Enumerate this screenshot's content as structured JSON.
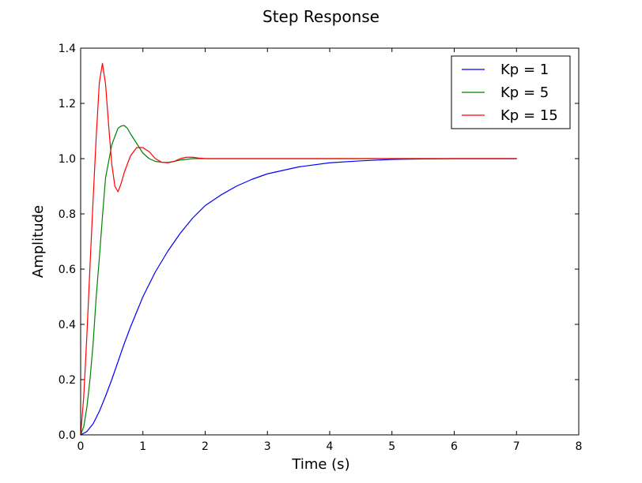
{
  "chart_data": {
    "type": "line",
    "title": "Step Response",
    "xlabel": "Time (s)",
    "ylabel": "Amplitude",
    "xlim": [
      0,
      8
    ],
    "ylim": [
      0,
      1.4
    ],
    "xticks": [
      "0",
      "1",
      "2",
      "3",
      "4",
      "5",
      "6",
      "7",
      "8"
    ],
    "yticks": [
      "0.0",
      "0.2",
      "0.4",
      "0.6",
      "0.8",
      "1.0",
      "1.2",
      "1.4"
    ],
    "grid": false,
    "legend_position": "top-right",
    "series": [
      {
        "name": "Kp = 1",
        "color": "#0000ff",
        "points": [
          [
            0,
            0
          ],
          [
            0.1,
            0.012
          ],
          [
            0.2,
            0.04
          ],
          [
            0.3,
            0.085
          ],
          [
            0.4,
            0.14
          ],
          [
            0.5,
            0.2
          ],
          [
            0.6,
            0.265
          ],
          [
            0.7,
            0.33
          ],
          [
            0.8,
            0.39
          ],
          [
            0.9,
            0.445
          ],
          [
            1.0,
            0.5
          ],
          [
            1.2,
            0.59
          ],
          [
            1.4,
            0.665
          ],
          [
            1.6,
            0.73
          ],
          [
            1.8,
            0.785
          ],
          [
            2.0,
            0.83
          ],
          [
            2.25,
            0.868
          ],
          [
            2.5,
            0.9
          ],
          [
            2.75,
            0.925
          ],
          [
            3.0,
            0.945
          ],
          [
            3.5,
            0.97
          ],
          [
            4.0,
            0.985
          ],
          [
            4.5,
            0.992
          ],
          [
            5.0,
            0.997
          ],
          [
            5.5,
            0.999
          ],
          [
            6.0,
            1.0
          ],
          [
            6.5,
            1.0
          ],
          [
            7.0,
            1.0
          ]
        ]
      },
      {
        "name": "Kp = 5",
        "color": "#008000",
        "points": [
          [
            0,
            0
          ],
          [
            0.05,
            0.03
          ],
          [
            0.1,
            0.1
          ],
          [
            0.15,
            0.2
          ],
          [
            0.2,
            0.33
          ],
          [
            0.25,
            0.5
          ],
          [
            0.3,
            0.64
          ],
          [
            0.35,
            0.79
          ],
          [
            0.4,
            0.93
          ],
          [
            0.5,
            1.05
          ],
          [
            0.6,
            1.11
          ],
          [
            0.65,
            1.118
          ],
          [
            0.7,
            1.12
          ],
          [
            0.75,
            1.11
          ],
          [
            0.8,
            1.09
          ],
          [
            0.9,
            1.055
          ],
          [
            1.0,
            1.02
          ],
          [
            1.1,
            1.0
          ],
          [
            1.2,
            0.99
          ],
          [
            1.3,
            0.987
          ],
          [
            1.4,
            0.986
          ],
          [
            1.5,
            0.99
          ],
          [
            1.6,
            0.995
          ],
          [
            1.8,
            1.0
          ],
          [
            2.0,
            1.0
          ],
          [
            2.5,
            1.0
          ],
          [
            3.0,
            1.0
          ],
          [
            4.0,
            1.0
          ],
          [
            5.0,
            1.0
          ],
          [
            6.0,
            1.0
          ],
          [
            7.0,
            1.0
          ]
        ]
      },
      {
        "name": "Kp = 15",
        "color": "#ff0000",
        "points": [
          [
            0,
            0
          ],
          [
            0.05,
            0.14
          ],
          [
            0.1,
            0.36
          ],
          [
            0.15,
            0.61
          ],
          [
            0.2,
            0.85
          ],
          [
            0.25,
            1.08
          ],
          [
            0.3,
            1.275
          ],
          [
            0.35,
            1.345
          ],
          [
            0.4,
            1.27
          ],
          [
            0.45,
            1.12
          ],
          [
            0.5,
            0.98
          ],
          [
            0.55,
            0.9
          ],
          [
            0.6,
            0.88
          ],
          [
            0.65,
            0.91
          ],
          [
            0.7,
            0.95
          ],
          [
            0.8,
            1.01
          ],
          [
            0.9,
            1.04
          ],
          [
            1.0,
            1.04
          ],
          [
            1.1,
            1.025
          ],
          [
            1.2,
            1.0
          ],
          [
            1.3,
            0.987
          ],
          [
            1.4,
            0.985
          ],
          [
            1.5,
            0.99
          ],
          [
            1.6,
            1.0
          ],
          [
            1.7,
            1.005
          ],
          [
            1.8,
            1.005
          ],
          [
            1.9,
            1.002
          ],
          [
            2.0,
            1.0
          ],
          [
            2.5,
            1.0
          ],
          [
            3.0,
            1.0
          ],
          [
            4.0,
            1.0
          ],
          [
            5.0,
            1.0
          ],
          [
            6.0,
            1.0
          ],
          [
            7.0,
            1.0
          ]
        ]
      }
    ]
  }
}
